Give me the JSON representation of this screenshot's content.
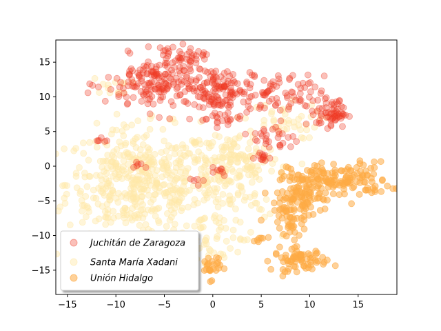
{
  "chart_data": {
    "type": "scatter",
    "title": "",
    "xlabel": "",
    "ylabel": "",
    "xlim": [
      -16.2,
      19.0
    ],
    "ylim": [
      -18.5,
      18.2
    ],
    "xticks": [
      -15,
      -10,
      -5,
      0,
      5,
      10,
      15
    ],
    "yticks": [
      -15,
      -10,
      -5,
      0,
      5,
      10,
      15
    ],
    "grid": false,
    "legend_position": "lower-left",
    "series": [
      {
        "name": "Juchitán de Zaragoza",
        "color": "#ee3a24",
        "alpha": 0.32,
        "clusters": [
          {
            "cx": -5.5,
            "cy": 11.8,
            "sx": 2.8,
            "sy": 2.0,
            "n": 180
          },
          {
            "cx": -3.5,
            "cy": 15.6,
            "sx": 1.3,
            "sy": 0.6,
            "n": 40
          },
          {
            "cx": 0.5,
            "cy": 11.2,
            "sx": 1.8,
            "sy": 1.6,
            "n": 110
          },
          {
            "cx": 6.5,
            "cy": 10.0,
            "sx": 2.5,
            "sy": 1.5,
            "n": 80
          },
          {
            "cx": 12.3,
            "cy": 7.6,
            "sx": 0.8,
            "sy": 1.0,
            "n": 60
          },
          {
            "cx": 0.8,
            "cy": 7.0,
            "sx": 1.0,
            "sy": 0.6,
            "n": 20
          },
          {
            "cx": 6.5,
            "cy": 4.0,
            "sx": 1.2,
            "sy": 1.2,
            "n": 30
          },
          {
            "cx": 4.8,
            "cy": 1.3,
            "sx": 0.6,
            "sy": 0.5,
            "n": 12
          },
          {
            "cx": 0.5,
            "cy": -0.6,
            "sx": 0.6,
            "sy": 0.4,
            "n": 8
          },
          {
            "cx": -7.6,
            "cy": 0.5,
            "sx": 0.5,
            "sy": 0.4,
            "n": 6
          },
          {
            "cx": -11.5,
            "cy": 3.8,
            "sx": 0.6,
            "sy": 0.3,
            "n": 6
          },
          {
            "cx": -2.0,
            "cy": -2.2,
            "sx": 0.6,
            "sy": 0.5,
            "n": 5
          }
        ]
      },
      {
        "name": "Santa María Xadani",
        "color": "#ffe8a9",
        "alpha": 0.45,
        "clusters": [
          {
            "cx": -7.5,
            "cy": -2.5,
            "sx": 3.8,
            "sy": 4.0,
            "n": 460
          },
          {
            "cx": 1.0,
            "cy": -3.0,
            "sx": 2.6,
            "sy": 4.2,
            "n": 160
          },
          {
            "cx": 3.0,
            "cy": 1.0,
            "sx": 2.0,
            "sy": 1.8,
            "n": 70
          },
          {
            "cx": -2.5,
            "cy": -12.0,
            "sx": 1.8,
            "sy": 1.5,
            "n": 60
          },
          {
            "cx": 7.0,
            "cy": 6.5,
            "sx": 2.0,
            "sy": 1.3,
            "n": 40
          },
          {
            "cx": -10.5,
            "cy": 11.5,
            "sx": 1.0,
            "sy": 0.6,
            "n": 12
          }
        ]
      },
      {
        "name": "Unión Hidalgo",
        "color": "#fdab45",
        "alpha": 0.55,
        "clusters": [
          {
            "cx": 13.0,
            "cy": -2.0,
            "sx": 2.6,
            "sy": 1.3,
            "n": 150
          },
          {
            "cx": 9.0,
            "cy": -4.5,
            "sx": 1.2,
            "sy": 1.6,
            "n": 90
          },
          {
            "cx": 8.0,
            "cy": -8.0,
            "sx": 0.8,
            "sy": 1.3,
            "n": 40
          },
          {
            "cx": 9.0,
            "cy": -13.5,
            "sx": 1.4,
            "sy": 0.8,
            "n": 70
          },
          {
            "cx": -0.2,
            "cy": -14.5,
            "sx": 0.5,
            "sy": 0.9,
            "n": 25
          },
          {
            "cx": 4.7,
            "cy": -10.6,
            "sx": 0.4,
            "sy": 0.2,
            "n": 6
          }
        ]
      }
    ]
  }
}
